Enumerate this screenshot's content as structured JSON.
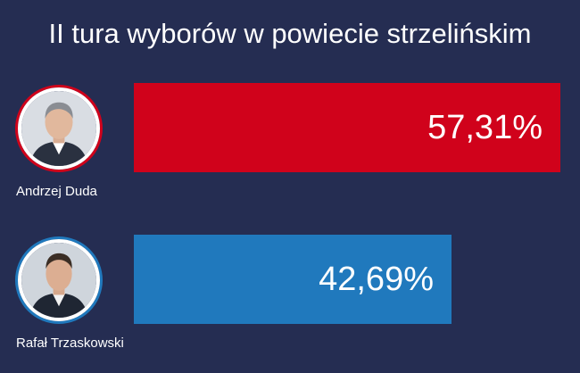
{
  "chart_data": {
    "type": "bar",
    "orientation": "horizontal",
    "title": "II tura wyborów w powiecie strzelińskim",
    "xlabel": "",
    "ylabel": "",
    "xlim": [
      0,
      60
    ],
    "grid": false,
    "categories": [
      "Andrzej Duda",
      "Rafał Trzaskowski"
    ],
    "values": [
      57.31,
      42.69
    ],
    "value_labels": [
      "57,31%",
      "42,69%"
    ],
    "colors": [
      "#d0021b",
      "#2079bd"
    ],
    "avatar_ring_colors": [
      "#d0021b",
      "#2079bd"
    ]
  }
}
